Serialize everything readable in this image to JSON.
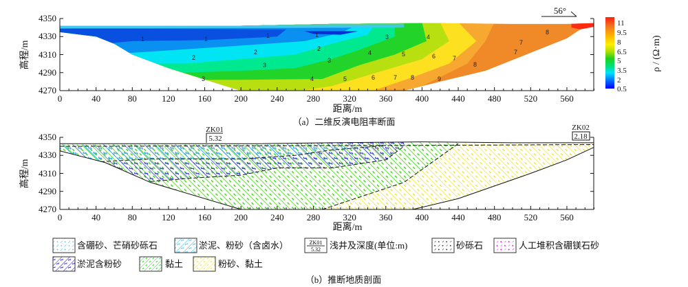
{
  "panel_a": {
    "ylabel": "高程/m",
    "xlabel": "距离/m",
    "caption": "（a）二维反演电阻率断面",
    "yticks": [
      "4350",
      "4330",
      "4310",
      "4290",
      "4270"
    ],
    "xticks": [
      "0",
      "40",
      "80",
      "120",
      "160",
      "200",
      "240",
      "280",
      "320",
      "360",
      "400",
      "440",
      "480",
      "520",
      "560"
    ],
    "dip_label": "56°",
    "colorbar": {
      "title": "ρ / (Ω·m)",
      "ticks": [
        "11",
        "9.5",
        "8",
        "6.5",
        "5",
        "3.5",
        "2",
        "0.5"
      ],
      "colors": [
        "#0000ff",
        "#0078ff",
        "#00e0ff",
        "#00e070",
        "#20d020",
        "#b0e000",
        "#ffee00",
        "#ffb000",
        "#f07020",
        "#ff2010"
      ]
    },
    "contour_labels": [
      "1",
      "1",
      "1",
      "1",
      "2",
      "2",
      "2",
      "3",
      "3",
      "3",
      "3",
      "4",
      "4",
      "4",
      "5",
      "5",
      "6",
      "6",
      "7",
      "7",
      "7",
      "7",
      "8",
      "8",
      "8",
      "9"
    ]
  },
  "panel_b": {
    "ylabel": "高程/m",
    "xlabel": "距离/m",
    "caption": "（b）推断地质剖面",
    "yticks": [
      "4350",
      "4330",
      "4310",
      "4290",
      "4270"
    ],
    "xticks": [
      "0",
      "40",
      "80",
      "120",
      "160",
      "200",
      "240",
      "280",
      "320",
      "360",
      "400",
      "440",
      "480",
      "520",
      "560"
    ],
    "wells": [
      {
        "name": "ZK01",
        "depth": "5.32"
      },
      {
        "name": "ZK02",
        "depth": "2.18"
      }
    ]
  },
  "legend": [
    {
      "label": "含硼砂、芒硝砂砾石",
      "color": "#30b0e0"
    },
    {
      "label": "淤泥、粉砂（含卤水）",
      "color": "#30c0f0"
    },
    {
      "label": "浅井及深度(单位:m)",
      "well": "ZK01",
      "depth": "5.32"
    },
    {
      "label": "砂砾石",
      "color": "#111111"
    },
    {
      "label": "人工堆积含硼镁石砂",
      "color": "#ff00ff"
    },
    {
      "label": "淤泥含粉砂",
      "color": "#1010e0"
    },
    {
      "label": "黏土",
      "color": "#20e020"
    },
    {
      "label": "粉砂、黏土",
      "color": "#f0e020"
    }
  ]
}
